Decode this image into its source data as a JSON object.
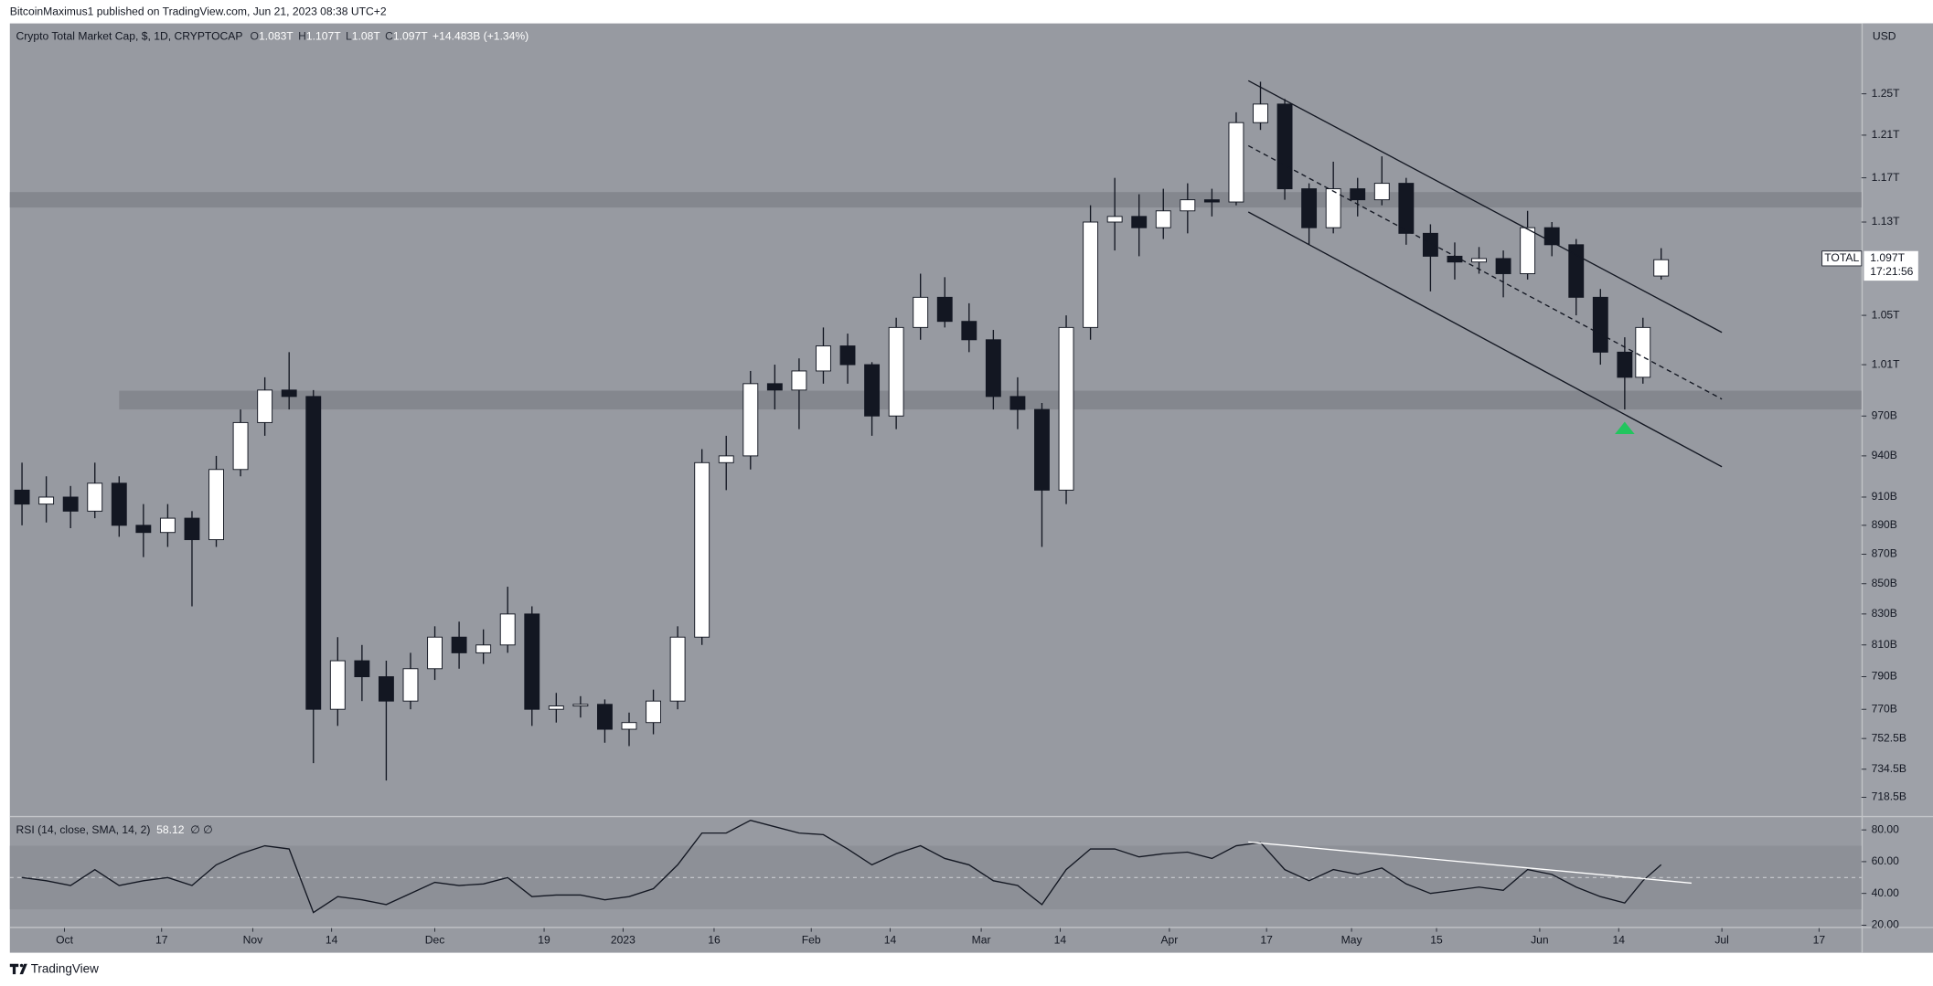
{
  "header": {
    "publisher": "BitcoinMaximus1 published on TradingView.com, Jun 21, 2023 08:38 UTC+2"
  },
  "footer": {
    "brand": "TradingView"
  },
  "chart_data": [
    {
      "type": "candlestick",
      "title": "Crypto Total Market Cap, $, 1D, CRYPTOCAP",
      "legend": {
        "items": [
          {
            "key": "O",
            "value": "1.083T"
          },
          {
            "key": "H",
            "value": "1.107T"
          },
          {
            "key": "L",
            "value": "1.08T"
          },
          {
            "key": "C",
            "value": "1.097T"
          }
        ],
        "change": "+14.483B (+1.34%)"
      },
      "axis_unit": "USD",
      "last_label": {
        "name": "TOTAL",
        "value_label": "1.097T",
        "countdown": "17:21:56"
      },
      "log_scale": true,
      "grid": false,
      "up_color": "#ffffff",
      "down_color": "#131722",
      "x": [
        "2022-09-24",
        "2022-09-28",
        "2022-10-02",
        "2022-10-06",
        "2022-10-10",
        "2022-10-14",
        "2022-10-18",
        "2022-10-22",
        "2022-10-26",
        "2022-10-30",
        "2022-11-03",
        "2022-11-07",
        "2022-11-11",
        "2022-11-15",
        "2022-11-19",
        "2022-11-23",
        "2022-11-27",
        "2022-12-01",
        "2022-12-05",
        "2022-12-09",
        "2022-12-13",
        "2022-12-17",
        "2022-12-21",
        "2022-12-25",
        "2022-12-29",
        "2023-01-02",
        "2023-01-06",
        "2023-01-10",
        "2023-01-14",
        "2023-01-18",
        "2023-01-22",
        "2023-01-26",
        "2023-01-30",
        "2023-02-03",
        "2023-02-07",
        "2023-02-11",
        "2023-02-15",
        "2023-02-19",
        "2023-02-23",
        "2023-02-27",
        "2023-03-03",
        "2023-03-07",
        "2023-03-11",
        "2023-03-15",
        "2023-03-19",
        "2023-03-23",
        "2023-03-27",
        "2023-03-31",
        "2023-04-04",
        "2023-04-08",
        "2023-04-12",
        "2023-04-16",
        "2023-04-20",
        "2023-04-24",
        "2023-04-28",
        "2023-05-02",
        "2023-05-06",
        "2023-05-10",
        "2023-05-14",
        "2023-05-18",
        "2023-05-22",
        "2023-05-26",
        "2023-05-30",
        "2023-06-03",
        "2023-06-07",
        "2023-06-11",
        "2023-06-15",
        "2023-06-18",
        "2023-06-21"
      ],
      "open": [
        915,
        905,
        910,
        900,
        920,
        890,
        885,
        895,
        880,
        930,
        965,
        990,
        985,
        770,
        800,
        790,
        775,
        795,
        815,
        805,
        810,
        830,
        770,
        772,
        773,
        758,
        762,
        775,
        815,
        935,
        940,
        995,
        990,
        1005,
        1025,
        1010,
        970,
        1040,
        1065,
        1045,
        1030,
        985,
        975,
        915,
        1040,
        1130,
        1135,
        1125,
        1140,
        1150,
        1148,
        1222,
        1240,
        1160,
        1125,
        1160,
        1150,
        1165,
        1120,
        1100,
        1095,
        1098,
        1085,
        1125,
        1110,
        1065,
        1020,
        1000,
        1083
      ],
      "high": [
        935,
        925,
        918,
        935,
        925,
        905,
        905,
        900,
        940,
        975,
        1000,
        1020,
        990,
        815,
        810,
        800,
        805,
        822,
        825,
        820,
        848,
        835,
        780,
        778,
        776,
        768,
        782,
        822,
        945,
        955,
        1005,
        1010,
        1015,
        1040,
        1035,
        1012,
        1048,
        1085,
        1082,
        1060,
        1038,
        1000,
        980,
        1050,
        1145,
        1170,
        1155,
        1160,
        1165,
        1160,
        1232,
        1262,
        1245,
        1165,
        1185,
        1170,
        1190,
        1170,
        1128,
        1112,
        1108,
        1105,
        1140,
        1130,
        1115,
        1072,
        1032,
        1048,
        1107
      ],
      "low": [
        890,
        892,
        888,
        895,
        882,
        868,
        875,
        835,
        875,
        925,
        955,
        975,
        738,
        760,
        775,
        728,
        770,
        788,
        795,
        798,
        805,
        760,
        762,
        765,
        750,
        748,
        755,
        770,
        810,
        915,
        930,
        975,
        960,
        995,
        995,
        955,
        960,
        1030,
        1040,
        1020,
        975,
        960,
        875,
        905,
        1030,
        1105,
        1100,
        1115,
        1120,
        1135,
        1145,
        1215,
        1150,
        1110,
        1120,
        1135,
        1145,
        1110,
        1070,
        1080,
        1085,
        1065,
        1080,
        1100,
        1050,
        1010,
        975,
        995,
        1080
      ],
      "close": [
        905,
        910,
        900,
        920,
        890,
        885,
        895,
        880,
        930,
        965,
        990,
        985,
        770,
        800,
        790,
        775,
        795,
        815,
        805,
        810,
        830,
        770,
        772,
        773,
        758,
        762,
        775,
        815,
        935,
        940,
        995,
        990,
        1005,
        1025,
        1010,
        970,
        1040,
        1065,
        1045,
        1030,
        985,
        975,
        915,
        1040,
        1130,
        1135,
        1125,
        1140,
        1150,
        1148,
        1222,
        1240,
        1160,
        1125,
        1160,
        1150,
        1165,
        1120,
        1100,
        1095,
        1098,
        1085,
        1125,
        1110,
        1065,
        1020,
        1000,
        1040,
        1097
      ],
      "xlim": [
        "2022-09-22",
        "2023-07-24"
      ],
      "xticks": [
        {
          "value": "2022-10-01",
          "label": "Oct"
        },
        {
          "value": "2022-10-17",
          "label": "17"
        },
        {
          "value": "2022-11-01",
          "label": "Nov"
        },
        {
          "value": "2022-11-14",
          "label": "14"
        },
        {
          "value": "2022-12-01",
          "label": "Dec"
        },
        {
          "value": "2022-12-19",
          "label": "19"
        },
        {
          "value": "2023-01-01",
          "label": "2023"
        },
        {
          "value": "2023-01-16",
          "label": "16"
        },
        {
          "value": "2023-02-01",
          "label": "Feb"
        },
        {
          "value": "2023-02-14",
          "label": "14"
        },
        {
          "value": "2023-03-01",
          "label": "Mar"
        },
        {
          "value": "2023-03-14",
          "label": "14"
        },
        {
          "value": "2023-04-01",
          "label": "Apr"
        },
        {
          "value": "2023-04-17",
          "label": "17"
        },
        {
          "value": "2023-05-01",
          "label": "May"
        },
        {
          "value": "2023-05-15",
          "label": "15"
        },
        {
          "value": "2023-06-01",
          "label": "Jun"
        },
        {
          "value": "2023-06-14",
          "label": "14"
        },
        {
          "value": "2023-07-01",
          "label": "Jul"
        },
        {
          "value": "2023-07-17",
          "label": "17"
        }
      ],
      "ylim": [
        708,
        1320
      ],
      "yticks": [
        {
          "value": 1250,
          "label": "1.25T"
        },
        {
          "value": 1210,
          "label": "1.21T"
        },
        {
          "value": 1170,
          "label": "1.17T"
        },
        {
          "value": 1130,
          "label": "1.13T"
        },
        {
          "value": 1050,
          "label": "1.05T"
        },
        {
          "value": 1010,
          "label": "1.01T"
        },
        {
          "value": 970,
          "label": "970B"
        },
        {
          "value": 940,
          "label": "940B"
        },
        {
          "value": 910,
          "label": "910B"
        },
        {
          "value": 890,
          "label": "890B"
        },
        {
          "value": 870,
          "label": "870B"
        },
        {
          "value": 850,
          "label": "850B"
        },
        {
          "value": 830,
          "label": "830B"
        },
        {
          "value": 810,
          "label": "810B"
        },
        {
          "value": 790,
          "label": "790B"
        },
        {
          "value": 770,
          "label": "770B"
        },
        {
          "value": 752.5,
          "label": "752.5B"
        },
        {
          "value": 734.5,
          "label": "734.5B"
        },
        {
          "value": 718.5,
          "label": "718.5B"
        }
      ],
      "zones": [
        {
          "start": "2022-09-22",
          "range": [
            1143,
            1157
          ],
          "color": "#84878e"
        },
        {
          "start": "2022-10-10",
          "range": [
            975,
            989.5
          ],
          "color": "#84878e"
        }
      ],
      "trendlines": [
        {
          "x": [
            "2023-04-14",
            "2023-07-01"
          ],
          "values": [
            1263,
            1036
          ],
          "color": "#131722",
          "dashed": false
        },
        {
          "x": [
            "2023-04-14",
            "2023-07-01"
          ],
          "values": [
            1200,
            983
          ],
          "color": "#131722",
          "dashed": true
        },
        {
          "x": [
            "2023-04-14",
            "2023-07-01"
          ],
          "values": [
            1139,
            932
          ],
          "color": "#131722",
          "dashed": false
        }
      ],
      "signal": {
        "x": "2023-06-15",
        "value": 960,
        "color": "#22c55e"
      }
    },
    {
      "type": "line",
      "title": "RSI (14, close, SMA, 14, 2)",
      "last_value_label": "58.12",
      "extra": "∅ ∅",
      "color": "#131722",
      "x": [
        "2022-09-24",
        "2022-09-28",
        "2022-10-02",
        "2022-10-06",
        "2022-10-10",
        "2022-10-14",
        "2022-10-18",
        "2022-10-22",
        "2022-10-26",
        "2022-10-30",
        "2022-11-03",
        "2022-11-07",
        "2022-11-11",
        "2022-11-15",
        "2022-11-19",
        "2022-11-23",
        "2022-11-27",
        "2022-12-01",
        "2022-12-05",
        "2022-12-09",
        "2022-12-13",
        "2022-12-17",
        "2022-12-21",
        "2022-12-25",
        "2022-12-29",
        "2023-01-02",
        "2023-01-06",
        "2023-01-10",
        "2023-01-14",
        "2023-01-18",
        "2023-01-22",
        "2023-01-26",
        "2023-01-30",
        "2023-02-03",
        "2023-02-07",
        "2023-02-11",
        "2023-02-15",
        "2023-02-19",
        "2023-02-23",
        "2023-02-27",
        "2023-03-03",
        "2023-03-07",
        "2023-03-11",
        "2023-03-15",
        "2023-03-19",
        "2023-03-23",
        "2023-03-27",
        "2023-03-31",
        "2023-04-04",
        "2023-04-08",
        "2023-04-12",
        "2023-04-16",
        "2023-04-20",
        "2023-04-24",
        "2023-04-28",
        "2023-05-02",
        "2023-05-06",
        "2023-05-10",
        "2023-05-14",
        "2023-05-18",
        "2023-05-22",
        "2023-05-26",
        "2023-05-30",
        "2023-06-03",
        "2023-06-07",
        "2023-06-11",
        "2023-06-15",
        "2023-06-18",
        "2023-06-21"
      ],
      "values": [
        50,
        48,
        45,
        55,
        45,
        48,
        50,
        45,
        58,
        65,
        70,
        68,
        28,
        38,
        36,
        33,
        40,
        47,
        45,
        46,
        50,
        38,
        39,
        39,
        36,
        38,
        43,
        58,
        78,
        78,
        86,
        82,
        78,
        77,
        68,
        58,
        65,
        70,
        62,
        58,
        48,
        45,
        33,
        55,
        68,
        68,
        63,
        65,
        66,
        62,
        70,
        72,
        55,
        48,
        55,
        52,
        56,
        46,
        40,
        42,
        44,
        42,
        55,
        52,
        44,
        38,
        34,
        48,
        58.12
      ],
      "ylim": [
        19,
        88
      ],
      "yticks": [
        {
          "value": 80,
          "label": "80.00"
        },
        {
          "value": 60,
          "label": "60.00"
        },
        {
          "value": 40,
          "label": "40.00"
        },
        {
          "value": 20,
          "label": "20.00"
        }
      ],
      "band": [
        30,
        70
      ],
      "midline": 50,
      "trendline": {
        "x": [
          "2023-04-14",
          "2023-06-26"
        ],
        "values": [
          72.4,
          46.5
        ],
        "color": "#ffffff"
      }
    }
  ]
}
